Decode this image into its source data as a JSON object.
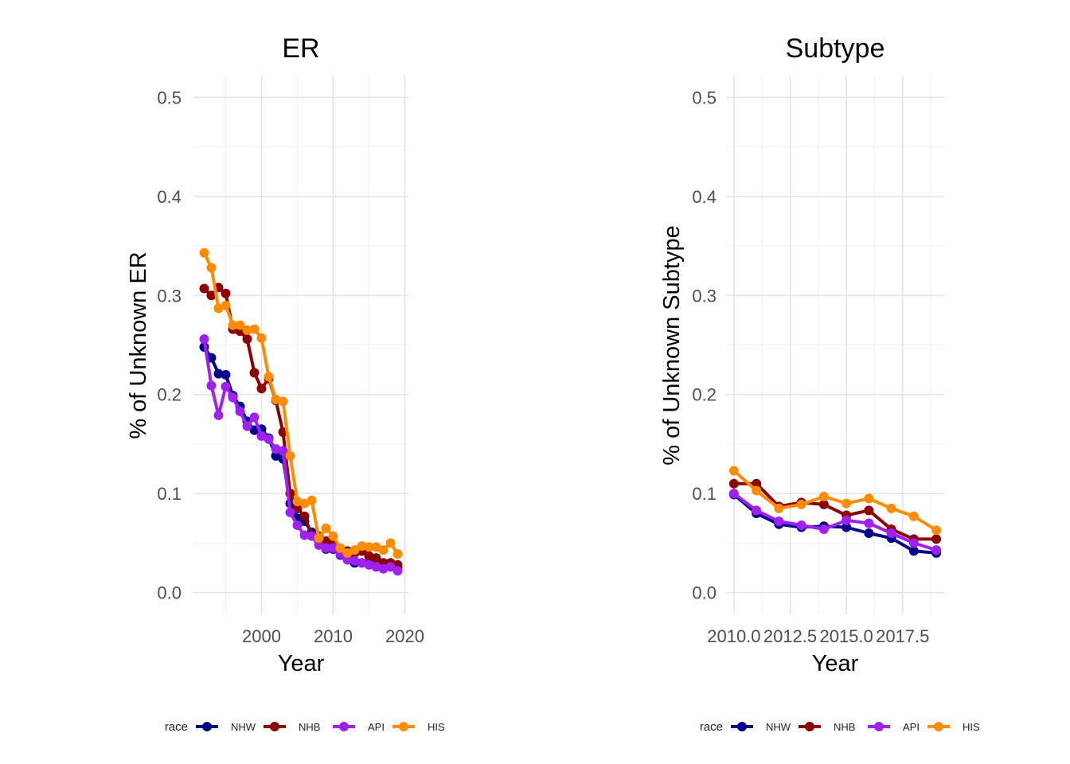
{
  "legend_title": "race",
  "chart_data": [
    {
      "type": "line",
      "title": "ER",
      "xlabel": "Year",
      "ylabel": "% of Unknown ER",
      "xlim": [
        1990.5,
        2020.5
      ],
      "ylim": [
        -0.022,
        0.522
      ],
      "xticks": [
        2000,
        2010,
        2020
      ],
      "xtick_labels": [
        "2000",
        "2010",
        "2020"
      ],
      "yticks": [
        0.0,
        0.1,
        0.2,
        0.3,
        0.4,
        0.5
      ],
      "ytick_labels": [
        "0.0",
        "0.1",
        "0.2",
        "0.3",
        "0.4",
        "0.5"
      ],
      "grid": true,
      "legend": "bottom",
      "x": [
        1992,
        1993,
        1994,
        1995,
        1996,
        1997,
        1998,
        1999,
        2000,
        2001,
        2002,
        2003,
        2004,
        2005,
        2006,
        2007,
        2008,
        2009,
        2010,
        2011,
        2012,
        2013,
        2014,
        2015,
        2016,
        2017,
        2018,
        2019
      ],
      "series": [
        {
          "name": "NHW",
          "color": "#00008b",
          "values": [
            0.248,
            0.237,
            0.221,
            0.22,
            0.199,
            0.188,
            0.173,
            0.164,
            0.165,
            0.156,
            0.138,
            0.135,
            0.09,
            0.075,
            0.072,
            0.061,
            0.052,
            0.044,
            0.044,
            0.038,
            0.035,
            0.03,
            0.03,
            0.03,
            0.026,
            0.025,
            0.026,
            0.026
          ]
        },
        {
          "name": "NHB",
          "color": "#8b0000",
          "values": [
            0.307,
            0.3,
            0.308,
            0.302,
            0.266,
            0.264,
            0.256,
            0.222,
            0.206,
            0.216,
            0.194,
            0.162,
            0.1,
            0.085,
            0.077,
            0.058,
            0.057,
            0.052,
            0.05,
            0.044,
            0.042,
            0.04,
            0.042,
            0.037,
            0.035,
            0.03,
            0.03,
            0.028
          ]
        },
        {
          "name": "API",
          "color": "#a020f0",
          "values": [
            0.256,
            0.209,
            0.179,
            0.208,
            0.197,
            0.183,
            0.168,
            0.177,
            0.158,
            0.155,
            0.145,
            0.143,
            0.081,
            0.068,
            0.058,
            0.057,
            0.048,
            0.045,
            0.045,
            0.039,
            0.033,
            0.032,
            0.03,
            0.028,
            0.026,
            0.024,
            0.026,
            0.022
          ]
        },
        {
          "name": "HIS",
          "color": "#ff8c00",
          "values": [
            0.343,
            0.328,
            0.287,
            0.29,
            0.27,
            0.27,
            0.265,
            0.266,
            0.257,
            0.218,
            0.195,
            0.193,
            0.138,
            0.092,
            0.09,
            0.093,
            0.055,
            0.065,
            0.057,
            0.045,
            0.04,
            0.043,
            0.047,
            0.046,
            0.046,
            0.043,
            0.05,
            0.039
          ]
        }
      ]
    },
    {
      "type": "line",
      "title": "Subtype",
      "xlabel": "Year",
      "ylabel": "% of Unknown Subtype",
      "xlim": [
        2009.65,
        2019.35
      ],
      "ylim": [
        -0.022,
        0.522
      ],
      "xticks": [
        2010.0,
        2012.5,
        2015.0,
        2017.5
      ],
      "xtick_labels": [
        "2010.0",
        "2012.5",
        "2015.0",
        "2017.5"
      ],
      "yticks": [
        0.0,
        0.1,
        0.2,
        0.3,
        0.4,
        0.5
      ],
      "ytick_labels": [
        "0.0",
        "0.1",
        "0.2",
        "0.3",
        "0.4",
        "0.5"
      ],
      "grid": true,
      "legend": "bottom",
      "x": [
        2010,
        2011,
        2012,
        2013,
        2014,
        2015,
        2016,
        2017,
        2018,
        2019
      ],
      "series": [
        {
          "name": "NHW",
          "color": "#00008b",
          "values": [
            0.099,
            0.08,
            0.069,
            0.066,
            0.067,
            0.066,
            0.06,
            0.055,
            0.042,
            0.04
          ]
        },
        {
          "name": "NHB",
          "color": "#8b0000",
          "values": [
            0.11,
            0.11,
            0.087,
            0.091,
            0.089,
            0.078,
            0.083,
            0.064,
            0.054,
            0.054
          ]
        },
        {
          "name": "API",
          "color": "#a020f0",
          "values": [
            0.1,
            0.083,
            0.072,
            0.068,
            0.064,
            0.073,
            0.07,
            0.06,
            0.05,
            0.043
          ]
        },
        {
          "name": "HIS",
          "color": "#ff8c00",
          "values": [
            0.123,
            0.103,
            0.085,
            0.089,
            0.097,
            0.09,
            0.095,
            0.085,
            0.077,
            0.063
          ]
        }
      ]
    }
  ]
}
